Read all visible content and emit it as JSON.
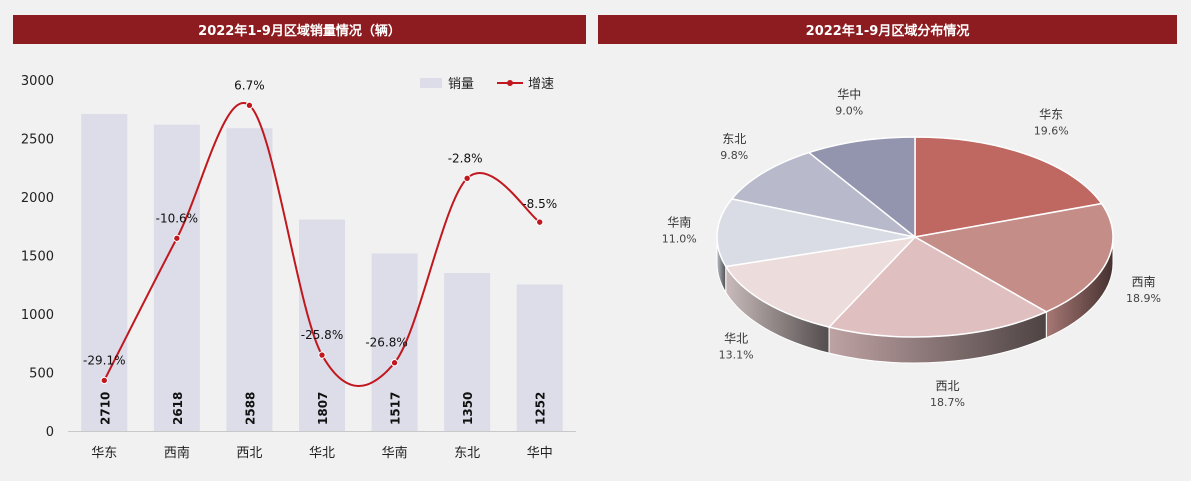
{
  "left_title": "2022年1-9月区域销量情况（辆）",
  "right_title": "2022年1-9月区域分布情况",
  "chart_data": [
    {
      "type": "bar",
      "title": "2022年1-9月区域销量情况（辆）",
      "categories": [
        "华东",
        "西南",
        "西北",
        "华北",
        "华南",
        "东北",
        "华中"
      ],
      "ylim": [
        0,
        3000
      ],
      "yticks": [
        0,
        500,
        1000,
        1500,
        2000,
        2500,
        3000
      ],
      "legend_position": "top-right",
      "series": [
        {
          "name": "销量",
          "type": "bar",
          "color": "#dcdde8",
          "values": [
            2710,
            2618,
            2588,
            1807,
            1517,
            1350,
            1252
          ]
        },
        {
          "name": "增速",
          "type": "line",
          "color": "#c0181e",
          "values": [
            -29.1,
            -10.6,
            6.7,
            -25.8,
            -26.8,
            -2.8,
            -8.5
          ],
          "labels": [
            "-29.1%",
            "-10.6%",
            "6.7%",
            "-25.8%",
            "-26.8%",
            "-2.8%",
            "-8.5%"
          ]
        }
      ]
    },
    {
      "type": "pie",
      "title": "2022年1-9月区域分布情况",
      "categories": [
        "华东",
        "西南",
        "西北",
        "华北",
        "华南",
        "东北",
        "华中"
      ],
      "values": [
        19.6,
        18.9,
        18.7,
        13.1,
        11.0,
        9.8,
        9.0
      ],
      "labels": [
        "19.6%",
        "18.9%",
        "18.7%",
        "13.1%",
        "11.0%",
        "9.8%",
        "9.0%"
      ],
      "colors": [
        "#bf6862",
        "#c48d88",
        "#e0bfc0",
        "#eddcdc",
        "#d9dce5",
        "#b8b9cb",
        "#9394ad"
      ]
    }
  ]
}
